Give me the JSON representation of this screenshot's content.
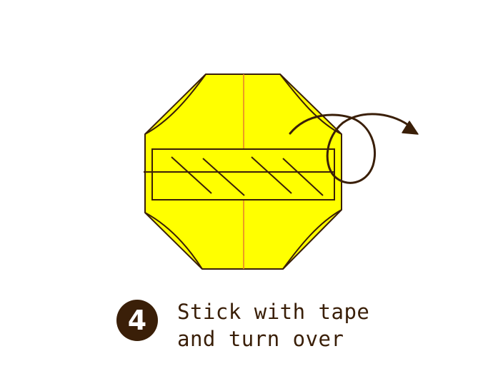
{
  "step": {
    "number": "4",
    "instruction_line1": "Stick with tape",
    "instruction_line2": "and turn over"
  },
  "colors": {
    "paper_fill": "#ffff00",
    "outline": "#3a1f08",
    "crease": "#e8842a",
    "badge": "#3a1f08",
    "text": "#3a1f08"
  },
  "icons": {
    "tape": "tape-rectangle",
    "turn_over": "turn-over-arrow-icon"
  }
}
